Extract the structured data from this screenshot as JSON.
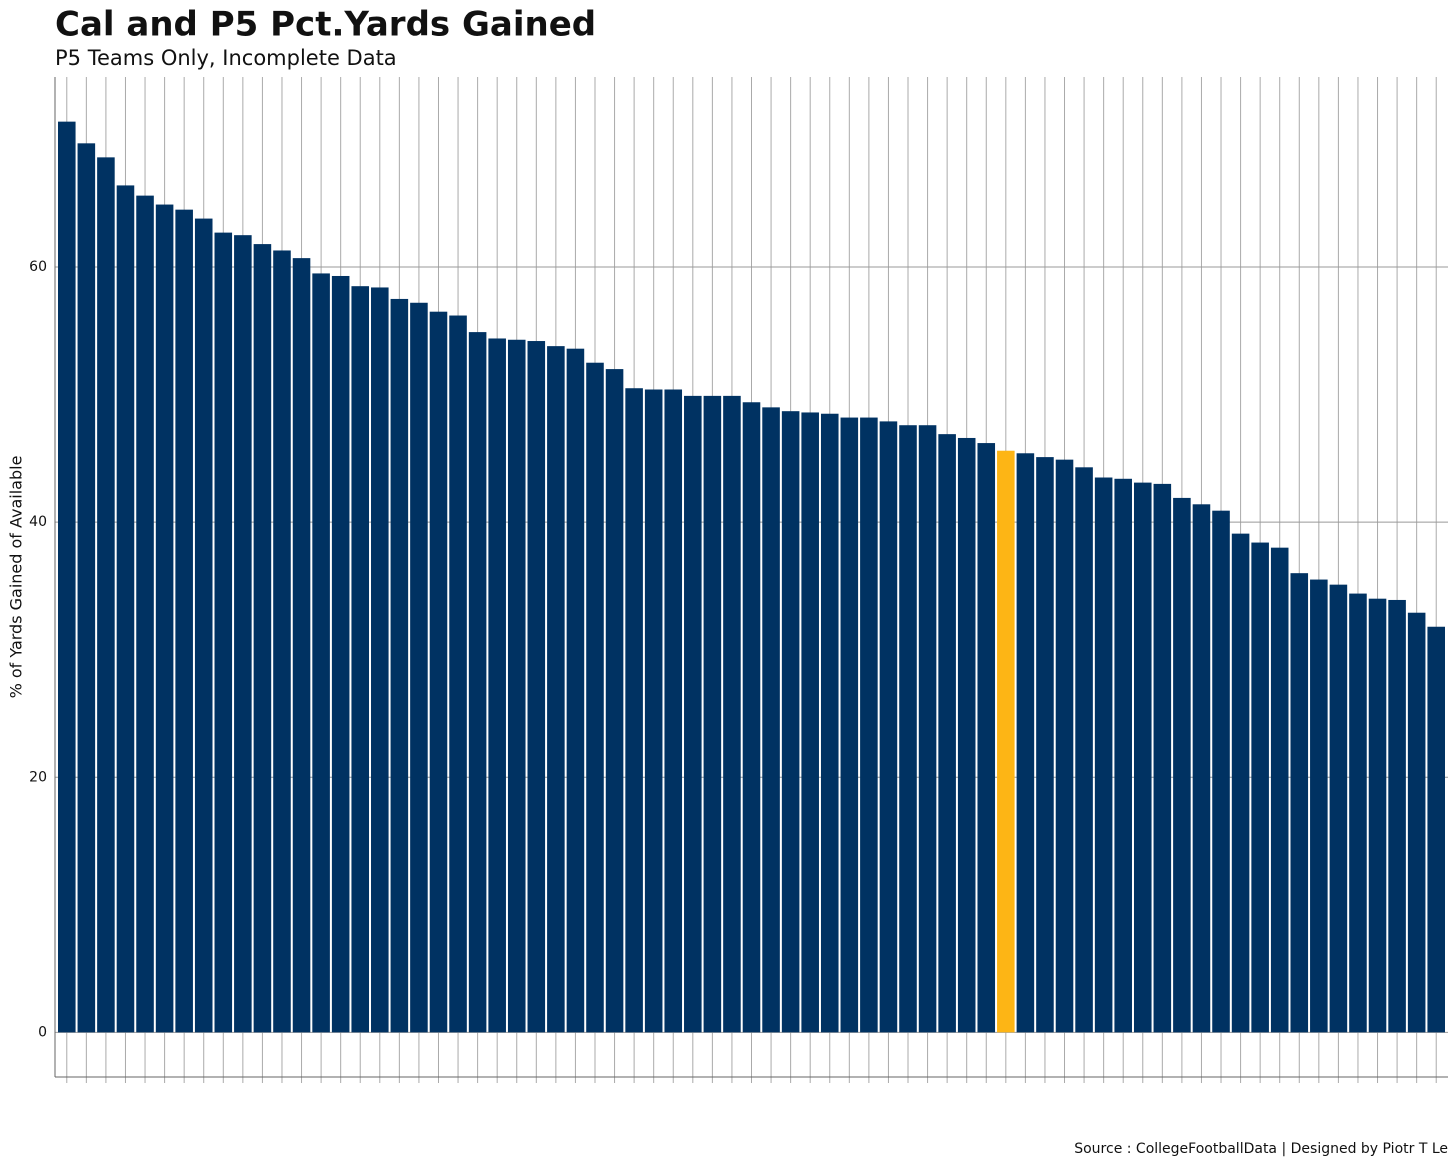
{
  "chart_data": {
    "type": "bar",
    "title": "Cal and P5  Pct.Yards Gained",
    "subtitle": "P5 Teams Only, Incomplete Data",
    "y_label": "% of Yards Gained of Available",
    "caption": "Source : CollegeFootballData | Designed by Piotr T Le",
    "values": [
      71.4,
      69.7,
      68.6,
      66.4,
      65.6,
      64.9,
      64.5,
      63.8,
      62.7,
      62.5,
      61.8,
      61.3,
      60.7,
      59.5,
      59.3,
      58.5,
      58.4,
      57.5,
      57.2,
      56.5,
      56.2,
      54.9,
      54.4,
      54.3,
      54.2,
      53.8,
      53.6,
      52.5,
      52.0,
      50.5,
      50.4,
      50.4,
      49.9,
      49.9,
      49.9,
      49.4,
      49.0,
      48.7,
      48.6,
      48.5,
      48.2,
      48.2,
      47.9,
      47.6,
      47.6,
      46.9,
      46.6,
      46.2,
      45.6,
      45.4,
      45.1,
      44.9,
      44.3,
      43.5,
      43.4,
      43.1,
      43.0,
      41.9,
      41.4,
      40.9,
      39.1,
      38.4,
      38.0,
      36.0,
      35.5,
      35.1,
      34.4,
      34.0,
      33.9,
      32.9,
      31.8
    ],
    "colors": [
      "#003262",
      "#003262",
      "#003262",
      "#003262",
      "#003262",
      "#003262",
      "#003262",
      "#003262",
      "#003262",
      "#003262",
      "#003262",
      "#003262",
      "#003262",
      "#003262",
      "#003262",
      "#003262",
      "#003262",
      "#003262",
      "#003262",
      "#003262",
      "#003262",
      "#003262",
      "#003262",
      "#003262",
      "#003262",
      "#003262",
      "#003262",
      "#003262",
      "#003262",
      "#003262",
      "#003262",
      "#003262",
      "#003262",
      "#003262",
      "#003262",
      "#003262",
      "#003262",
      "#003262",
      "#003262",
      "#003262",
      "#003262",
      "#003262",
      "#003262",
      "#003262",
      "#003262",
      "#003262",
      "#003262",
      "#003262",
      "#FDB515",
      "#003262",
      "#003262",
      "#003262",
      "#003262",
      "#003262",
      "#003262",
      "#003262",
      "#003262",
      "#003262",
      "#003262",
      "#003262",
      "#003262",
      "#003262",
      "#003262",
      "#003262",
      "#003262",
      "#003262",
      "#003262",
      "#003262",
      "#003262",
      "#003262",
      "#003262"
    ],
    "ylim": [
      -3.5,
      74.9
    ],
    "yticks": [
      0,
      20,
      40,
      60
    ],
    "grid": true
  }
}
